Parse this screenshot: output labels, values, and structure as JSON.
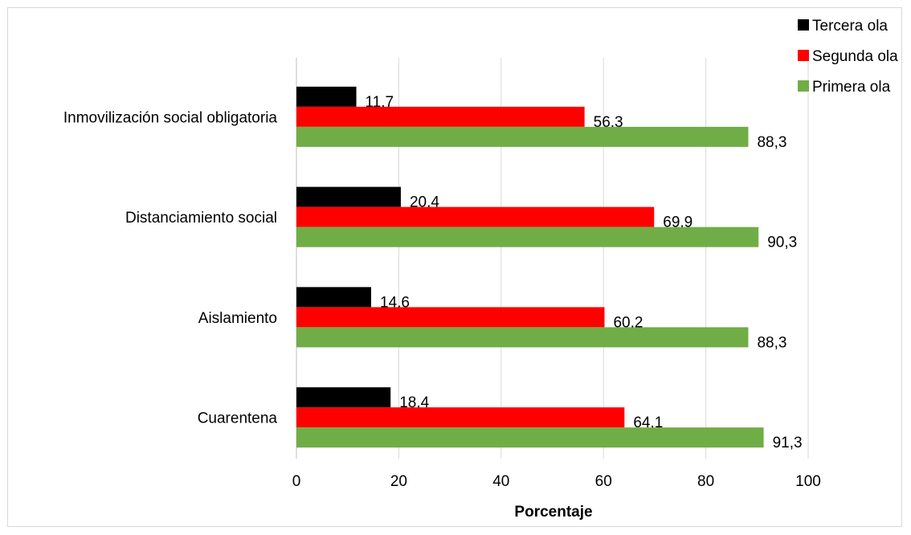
{
  "chart_data": {
    "type": "bar",
    "orientation": "horizontal",
    "categories": [
      "Inmovilización social obligatoria",
      "Distanciamiento social",
      "Aislamiento",
      "Cuarentena"
    ],
    "series": [
      {
        "name": "Tercera ola",
        "color": "#000000",
        "values": [
          11.7,
          20.4,
          14.6,
          18.4
        ]
      },
      {
        "name": "Segunda ola",
        "color": "#ff0000",
        "values": [
          56.3,
          69.9,
          60.2,
          64.1
        ]
      },
      {
        "name": "Primera ola",
        "color": "#70ad47",
        "values": [
          88.3,
          90.3,
          88.3,
          91.3
        ]
      }
    ],
    "data_labels": [
      [
        "11,7",
        "20,4",
        "14,6",
        "18,4"
      ],
      [
        "56,3",
        "69,9",
        "60,2",
        "64,1"
      ],
      [
        "88,3",
        "90,3",
        "88,3",
        "91,3"
      ]
    ],
    "xlabel": "Porcentaje",
    "ylabel": "",
    "xlim": [
      0,
      100
    ],
    "xticks": [
      0,
      20,
      40,
      60,
      80,
      100
    ],
    "tick_labels": [
      "0",
      "20",
      "40",
      "60",
      "80",
      "100"
    ],
    "grid": "vertical",
    "gridline_color": "#d9d9d9",
    "legend_placement": "top-right"
  }
}
